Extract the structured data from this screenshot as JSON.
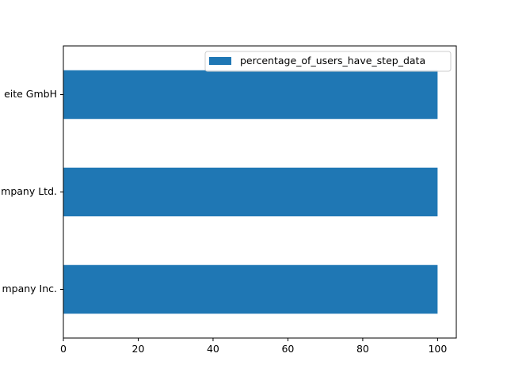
{
  "chart_data": {
    "type": "bar",
    "orientation": "horizontal",
    "categories": [
      "mpany Inc.",
      "mpany Ltd.",
      "eite GmbH"
    ],
    "series": [
      {
        "name": "percentage_of_users_have_step_data",
        "values": [
          100,
          100,
          100
        ]
      }
    ],
    "xticks": [
      0,
      20,
      40,
      60,
      80,
      100
    ],
    "xlim": [
      0,
      105
    ],
    "title": "",
    "xlabel": "",
    "ylabel": "",
    "grid": false,
    "legend_position": "top-right",
    "colors": {
      "bar": "#1f77b4",
      "axis": "#000000",
      "background": "#ffffff"
    }
  }
}
